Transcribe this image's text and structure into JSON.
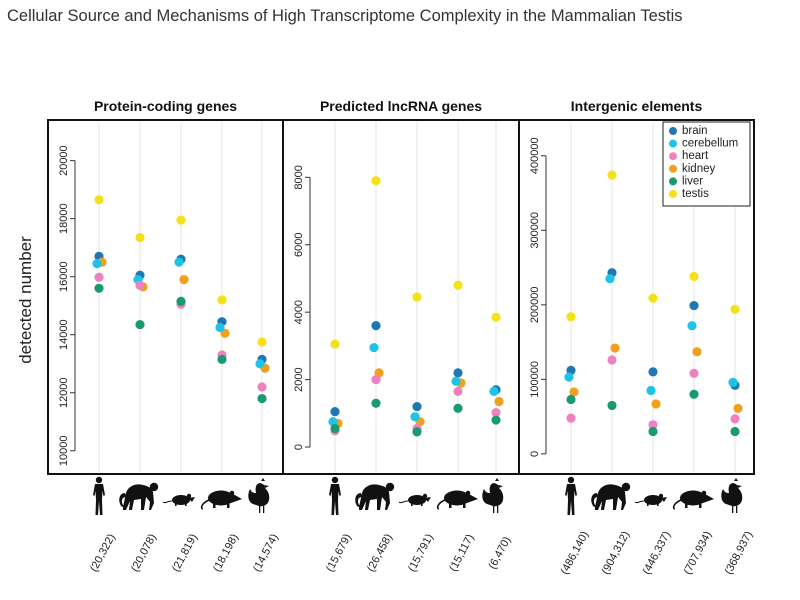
{
  "title": "Cellular Source and Mechanisms of High Transcriptome Complexity in the Mammalian Testis",
  "colors": {
    "brain": "#1f78b4",
    "cerebellum": "#1fc3e6",
    "heart": "#ee82c0",
    "kidney": "#f0a01c",
    "liver": "#1a9a74",
    "testis": "#f5e11a"
  },
  "chart_data": {
    "type": "scatter",
    "ylabel": "detected number",
    "species_icons": [
      "human-icon",
      "macaque-icon",
      "mouse-icon",
      "opossum-icon",
      "chicken-icon"
    ],
    "legend": {
      "placement": "top-right of third panel",
      "entries": [
        "brain",
        "cerebellum",
        "heart",
        "kidney",
        "liver",
        "testis"
      ]
    },
    "panels": [
      {
        "title": "Protein-coding genes",
        "ylim": [
          9200,
          21400
        ],
        "yticks": [
          10000,
          12000,
          14000,
          16000,
          18000,
          20000
        ],
        "category_labels": [
          "(20,322)",
          "(20,078)",
          "(21,819)",
          "(18,198)",
          "(14,574)"
        ],
        "series": [
          {
            "name": "brain",
            "values": [
              16700,
              16050,
              16600,
              14450,
              13150
            ]
          },
          {
            "name": "cerebellum",
            "values": [
              16450,
              15900,
              16500,
              14250,
              13000
            ]
          },
          {
            "name": "heart",
            "values": [
              15980,
              15700,
              15050,
              13300,
              12200
            ]
          },
          {
            "name": "kidney",
            "values": [
              16500,
              15650,
              15900,
              14050,
              12850
            ]
          },
          {
            "name": "liver",
            "values": [
              15600,
              14350,
              15150,
              13150,
              11800
            ]
          },
          {
            "name": "testis",
            "values": [
              18650,
              17350,
              17950,
              15200,
              13750
            ]
          }
        ]
      },
      {
        "title": "Predicted lncRNA genes",
        "ylim": [
          -800,
          9700
        ],
        "yticks": [
          0,
          2000,
          4000,
          6000,
          8000
        ],
        "category_labels": [
          "(15,679)",
          "(26,458)",
          "(15,791)",
          "(15,117)",
          "(6,470)"
        ],
        "series": [
          {
            "name": "brain",
            "values": [
              1050,
              3600,
              1200,
              2200,
              1700
            ]
          },
          {
            "name": "cerebellum",
            "values": [
              750,
              2950,
              900,
              1950,
              1650
            ]
          },
          {
            "name": "heart",
            "values": [
              480,
              2000,
              550,
              1650,
              1020
            ]
          },
          {
            "name": "kidney",
            "values": [
              700,
              2200,
              750,
              1900,
              1350
            ]
          },
          {
            "name": "liver",
            "values": [
              550,
              1300,
              450,
              1150,
              800
            ]
          },
          {
            "name": "testis",
            "values": [
              3050,
              7900,
              4450,
              4800,
              3850
            ]
          }
        ]
      },
      {
        "title": "Intergenic elements",
        "ylim": [
          -27000,
          448000
        ],
        "yticks": [
          0,
          100000,
          200000,
          300000,
          400000
        ],
        "category_labels": [
          "(486,140)",
          "(904,312)",
          "(446,337)",
          "(707,934)",
          "(368,937)"
        ],
        "series": [
          {
            "name": "brain",
            "values": [
              112000,
              243000,
              110000,
              199000,
              92000
            ]
          },
          {
            "name": "cerebellum",
            "values": [
              103000,
              235000,
              85000,
              172000,
              96000
            ]
          },
          {
            "name": "heart",
            "values": [
              48000,
              126000,
              39000,
              108000,
              47000
            ]
          },
          {
            "name": "kidney",
            "values": [
              83000,
              142000,
              67000,
              137000,
              61000
            ]
          },
          {
            "name": "liver",
            "values": [
              73000,
              65000,
              30000,
              80000,
              30000
            ]
          },
          {
            "name": "testis",
            "values": [
              184000,
              374000,
              209000,
              238000,
              194000
            ]
          }
        ]
      }
    ]
  }
}
